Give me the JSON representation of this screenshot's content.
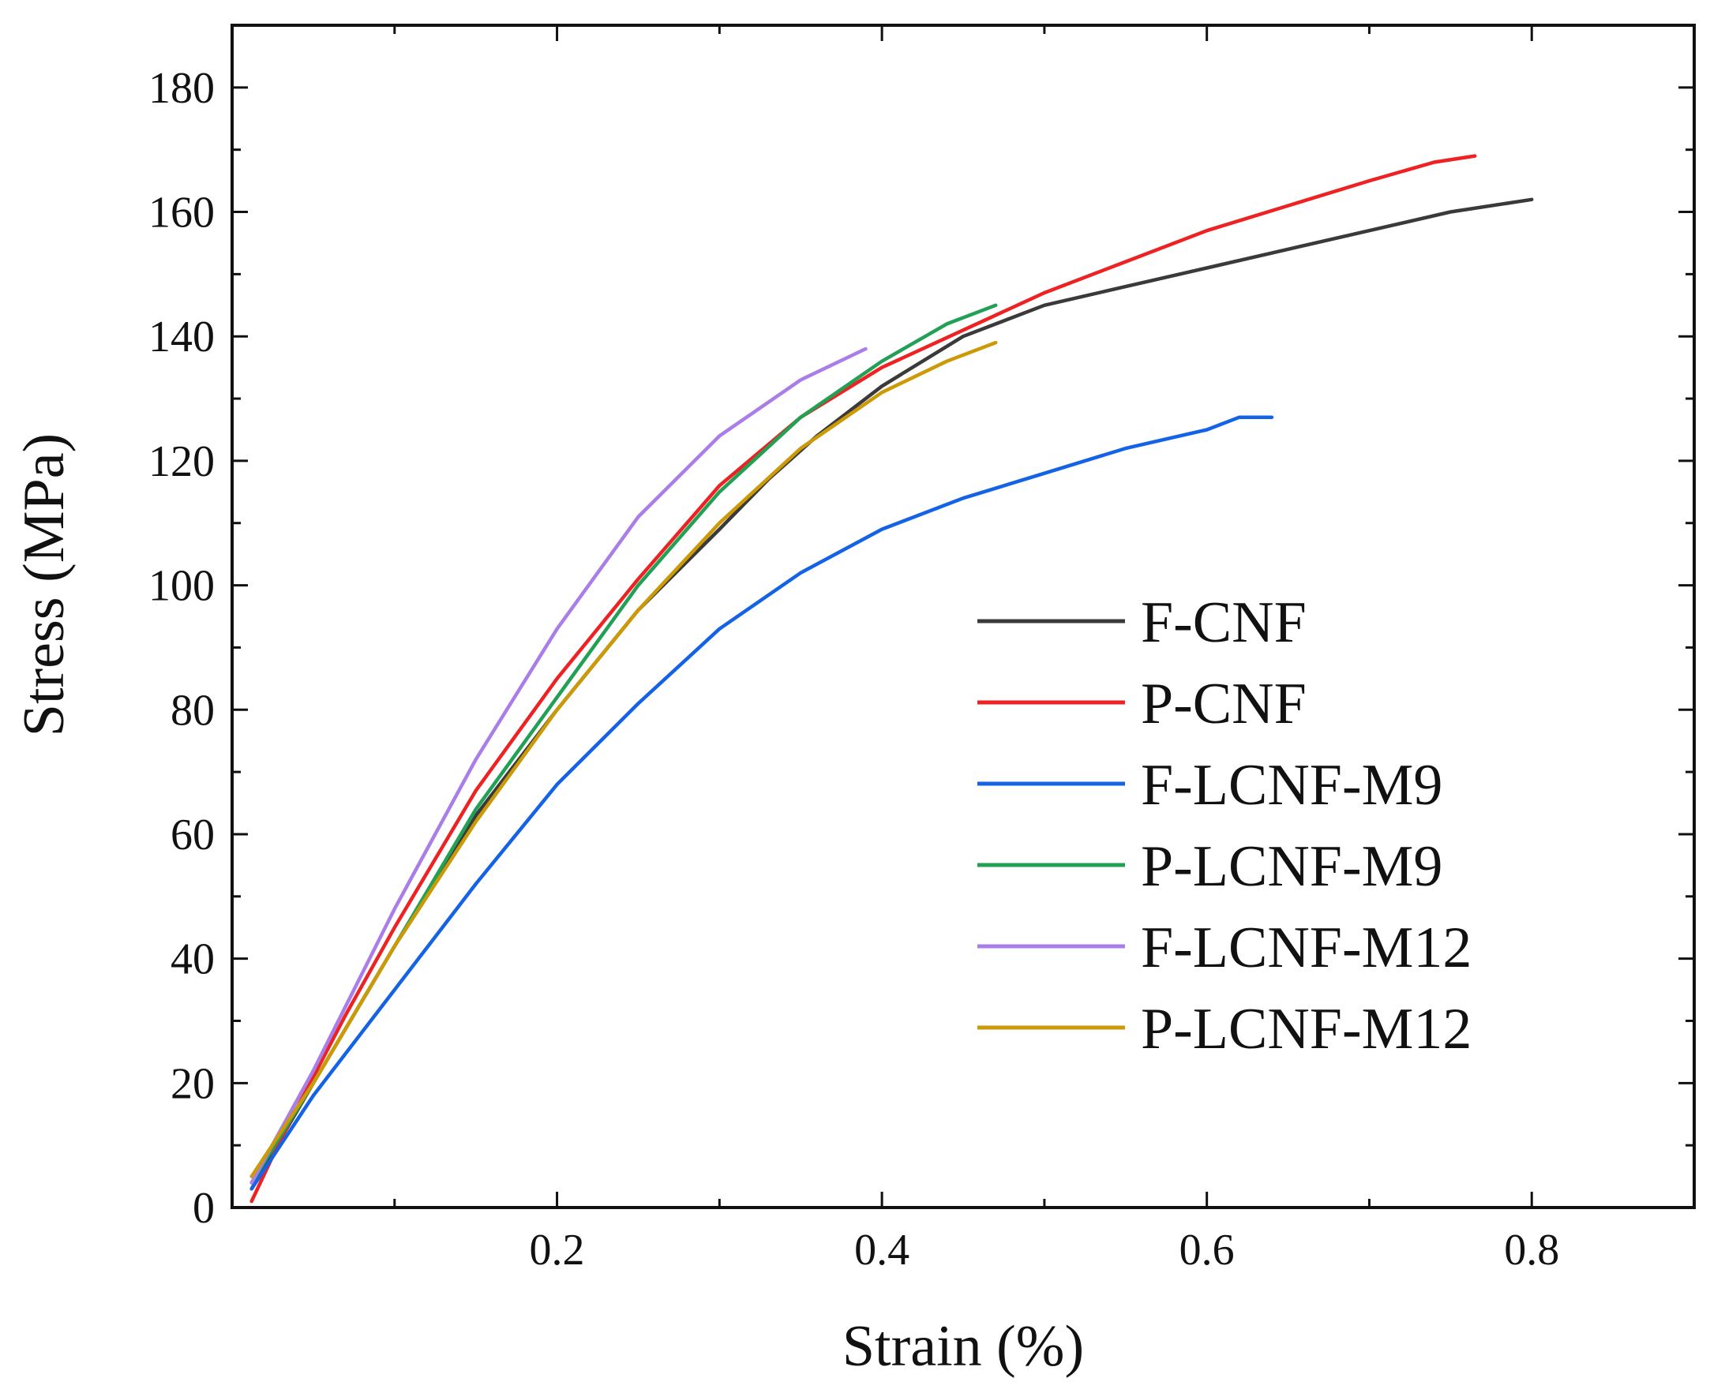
{
  "chart_data": {
    "type": "line",
    "title": "",
    "xlabel": "Strain (%)",
    "ylabel": "Stress (MPa)",
    "xlim": [
      0,
      0.9
    ],
    "ylim": [
      0,
      190
    ],
    "xticks": [
      0.2,
      0.4,
      0.6,
      0.8
    ],
    "xtick_labels": [
      "0.2",
      "0.4",
      "0.6",
      "0.8"
    ],
    "yticks": [
      0,
      20,
      40,
      60,
      80,
      100,
      120,
      140,
      160,
      180
    ],
    "ytick_labels": [
      "0",
      "20",
      "40",
      "60",
      "80",
      "100",
      "120",
      "140",
      "160",
      "180"
    ],
    "grid": false,
    "legend_position": "lower-right",
    "series": [
      {
        "name": "F-CNF",
        "color": "#3a3a3a",
        "points": [
          [
            0.012,
            3
          ],
          [
            0.05,
            20
          ],
          [
            0.1,
            42
          ],
          [
            0.15,
            63
          ],
          [
            0.2,
            80
          ],
          [
            0.25,
            96
          ],
          [
            0.3,
            109
          ],
          [
            0.33,
            117
          ],
          [
            0.36,
            124
          ],
          [
            0.4,
            132
          ],
          [
            0.45,
            140
          ],
          [
            0.5,
            145
          ],
          [
            0.55,
            148
          ],
          [
            0.6,
            151
          ],
          [
            0.65,
            154
          ],
          [
            0.7,
            157
          ],
          [
            0.75,
            160
          ],
          [
            0.8,
            162
          ]
        ]
      },
      {
        "name": "P-CNF",
        "color": "#ee2222",
        "points": [
          [
            0.012,
            1
          ],
          [
            0.03,
            11
          ],
          [
            0.07,
            31
          ],
          [
            0.1,
            45
          ],
          [
            0.15,
            67
          ],
          [
            0.2,
            85
          ],
          [
            0.25,
            101
          ],
          [
            0.3,
            116
          ],
          [
            0.35,
            127
          ],
          [
            0.4,
            135
          ],
          [
            0.45,
            141
          ],
          [
            0.5,
            147
          ],
          [
            0.55,
            152
          ],
          [
            0.6,
            157
          ],
          [
            0.65,
            161
          ],
          [
            0.7,
            165
          ],
          [
            0.74,
            168
          ],
          [
            0.765,
            169
          ]
        ]
      },
      {
        "name": "F-LCNF-M9",
        "color": "#1463e6",
        "points": [
          [
            0.012,
            3
          ],
          [
            0.05,
            18
          ],
          [
            0.1,
            35
          ],
          [
            0.15,
            52
          ],
          [
            0.2,
            68
          ],
          [
            0.25,
            81
          ],
          [
            0.3,
            93
          ],
          [
            0.35,
            102
          ],
          [
            0.4,
            109
          ],
          [
            0.45,
            114
          ],
          [
            0.5,
            118
          ],
          [
            0.55,
            122
          ],
          [
            0.6,
            125
          ],
          [
            0.62,
            127
          ],
          [
            0.64,
            127
          ]
        ]
      },
      {
        "name": "P-LCNF-M9",
        "color": "#22a055",
        "points": [
          [
            0.012,
            4
          ],
          [
            0.05,
            20
          ],
          [
            0.1,
            42
          ],
          [
            0.15,
            64
          ],
          [
            0.2,
            82
          ],
          [
            0.25,
            100
          ],
          [
            0.3,
            115
          ],
          [
            0.35,
            127
          ],
          [
            0.4,
            136
          ],
          [
            0.44,
            142
          ],
          [
            0.47,
            145
          ]
        ]
      },
      {
        "name": "F-LCNF-M12",
        "color": "#a97ee8",
        "points": [
          [
            0.012,
            4
          ],
          [
            0.05,
            22
          ],
          [
            0.1,
            48
          ],
          [
            0.15,
            72
          ],
          [
            0.2,
            93
          ],
          [
            0.25,
            111
          ],
          [
            0.3,
            124
          ],
          [
            0.35,
            133
          ],
          [
            0.39,
            138
          ]
        ]
      },
      {
        "name": "P-LCNF-M12",
        "color": "#cc9a06",
        "points": [
          [
            0.012,
            5
          ],
          [
            0.05,
            20
          ],
          [
            0.1,
            42
          ],
          [
            0.15,
            62
          ],
          [
            0.2,
            80
          ],
          [
            0.25,
            96
          ],
          [
            0.3,
            110
          ],
          [
            0.35,
            122
          ],
          [
            0.4,
            131
          ],
          [
            0.44,
            136
          ],
          [
            0.47,
            139
          ]
        ]
      }
    ]
  }
}
